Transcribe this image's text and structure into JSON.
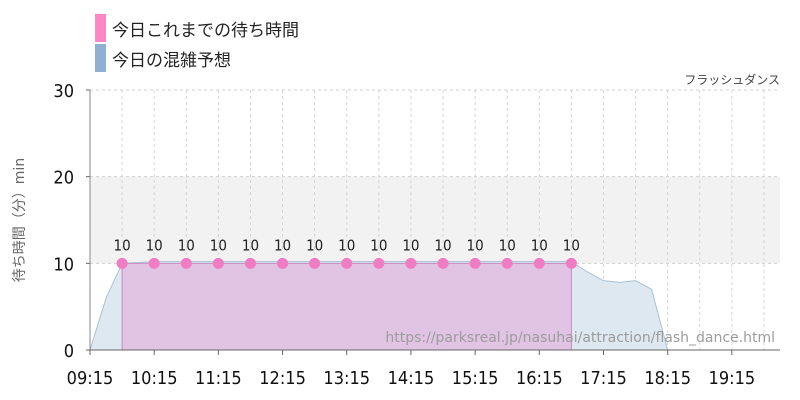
{
  "legend": {
    "actual_label": "今日これまでの待ち時間",
    "forecast_label": "今日の混雑予想",
    "actual_color": "#ff85c9",
    "forecast_color": "#8fb0d0"
  },
  "chart_data": {
    "type": "area",
    "title": "フラッシュダンス",
    "ylabel": "待ち時間（分）min",
    "xlabel": "",
    "watermark": "https://parksreal.jp/nasuhai/attraction/flash_dance.html",
    "ylim": [
      0,
      30
    ],
    "yticks": [
      0,
      10,
      20,
      30
    ],
    "highlight_band": [
      10,
      20
    ],
    "xlim": [
      "09:15",
      "20:00"
    ],
    "xticks": [
      "09:15",
      "10:15",
      "11:15",
      "12:15",
      "13:15",
      "14:15",
      "15:15",
      "16:15",
      "17:15",
      "18:15",
      "19:15"
    ],
    "grid": true,
    "series": [
      {
        "name": "今日これまでの待ち時間",
        "kind": "area-markers",
        "color": "#ff85c9",
        "x": [
          "09:45",
          "10:15",
          "10:45",
          "11:15",
          "11:45",
          "12:15",
          "12:45",
          "13:15",
          "13:45",
          "14:15",
          "14:45",
          "15:15",
          "15:45",
          "16:15",
          "16:45"
        ],
        "values": [
          10,
          10,
          10,
          10,
          10,
          10,
          10,
          10,
          10,
          10,
          10,
          10,
          10,
          10,
          10
        ],
        "labels": [
          "10",
          "10",
          "10",
          "10",
          "10",
          "10",
          "10",
          "10",
          "10",
          "10",
          "10",
          "10",
          "10",
          "10",
          "10"
        ]
      },
      {
        "name": "今日の混雑予想",
        "kind": "area",
        "color": "#8fb0d0",
        "x": [
          "09:15",
          "09:30",
          "09:45",
          "10:15",
          "11:15",
          "12:15",
          "13:15",
          "14:15",
          "15:15",
          "16:15",
          "16:45",
          "17:00",
          "17:15",
          "17:30",
          "17:45",
          "18:00",
          "18:15",
          "18:30",
          "19:00",
          "19:30",
          "20:00"
        ],
        "values": [
          0,
          6,
          10,
          10.2,
          10.2,
          10.2,
          10.2,
          10.2,
          10.2,
          10.2,
          10.2,
          9.0,
          8.0,
          7.8,
          8.0,
          7.0,
          0,
          0,
          0,
          0,
          0
        ]
      }
    ]
  }
}
